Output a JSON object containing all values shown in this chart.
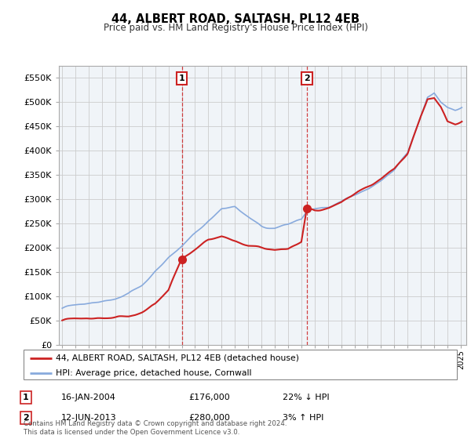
{
  "title": "44, ALBERT ROAD, SALTASH, PL12 4EB",
  "subtitle": "Price paid vs. HM Land Registry's House Price Index (HPI)",
  "ylabel_ticks": [
    "£0",
    "£50K",
    "£100K",
    "£150K",
    "£200K",
    "£250K",
    "£300K",
    "£350K",
    "£400K",
    "£450K",
    "£500K",
    "£550K"
  ],
  "ytick_vals": [
    0,
    50000,
    100000,
    150000,
    200000,
    250000,
    300000,
    350000,
    400000,
    450000,
    500000,
    550000
  ],
  "ylim": [
    0,
    575000
  ],
  "hpi_color": "#88aadd",
  "price_color": "#cc2222",
  "marker1_date_idx": 108,
  "marker1_price": 176000,
  "marker2_date_idx": 221,
  "marker2_price": 280000,
  "legend_price_label": "44, ALBERT ROAD, SALTASH, PL12 4EB (detached house)",
  "legend_hpi_label": "HPI: Average price, detached house, Cornwall",
  "footnote": "Contains HM Land Registry data © Crown copyright and database right 2024.\nThis data is licensed under the Open Government Licence v3.0.",
  "table_row1": [
    "1",
    "16-JAN-2004",
    "£176,000",
    "22% ↓ HPI"
  ],
  "table_row2": [
    "2",
    "12-JUN-2013",
    "£280,000",
    "3% ↑ HPI"
  ],
  "background_color": "#f0f4f8",
  "grid_color": "#cccccc"
}
